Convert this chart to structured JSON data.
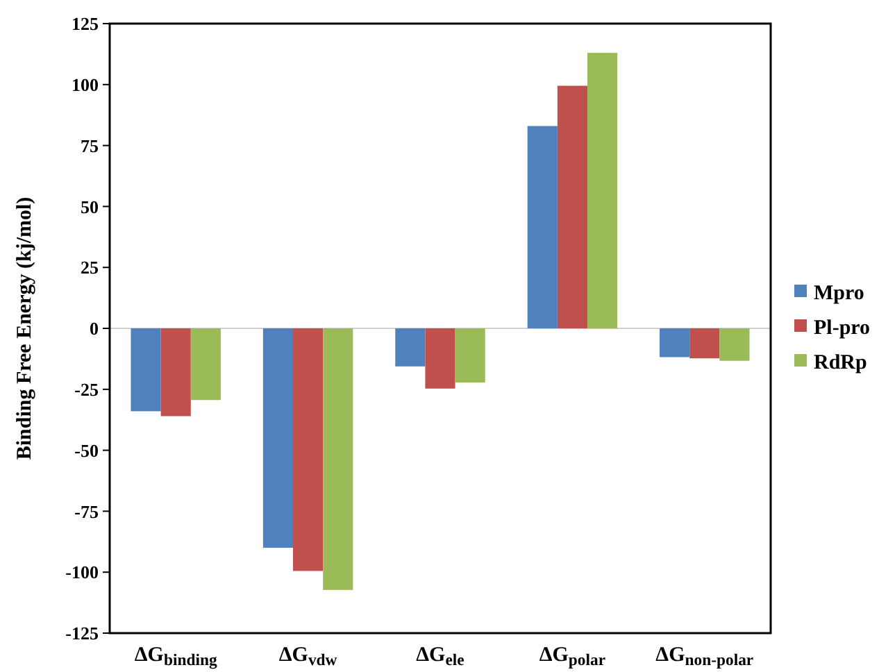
{
  "chart_data": {
    "type": "bar",
    "ylabel": "Binding Free Energy (kj/mol)",
    "categories": [
      "ΔG$_{binding}$",
      "ΔG$_{vdw}$",
      "ΔG$_{ele}$",
      "ΔG$_{polar}$",
      "ΔG$_{non-polar}$"
    ],
    "series": [
      {
        "name": "Mpro",
        "color": "#4f81bd",
        "values": [
          -34,
          -90,
          -15.6,
          83,
          -11.8
        ]
      },
      {
        "name": "Pl-pro",
        "color": "#c0504d",
        "values": [
          -36,
          -99.5,
          -24.7,
          99.5,
          -12.3
        ]
      },
      {
        "name": "RdRp",
        "color": "#9bbb59",
        "values": [
          -29.4,
          -107.3,
          -22.2,
          113,
          -13.3
        ]
      }
    ],
    "ylim": [
      -125,
      125
    ],
    "yticks": [
      -125,
      -100,
      -75,
      -50,
      -25,
      0,
      25,
      50,
      75,
      100,
      125
    ],
    "grid": false,
    "legend": "right",
    "ref_lines": [
      {
        "axis": "y",
        "value": 0,
        "color": "#d0d0d0"
      }
    ]
  }
}
